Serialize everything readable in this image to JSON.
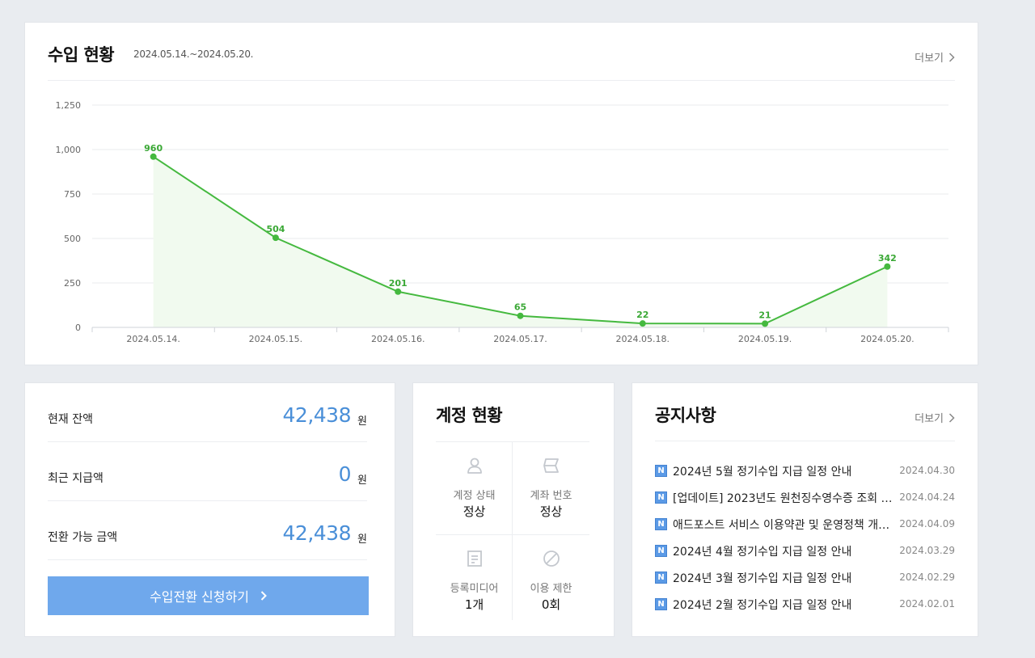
{
  "revenue": {
    "title": "수입 현황",
    "date_range": "2024.05.14.~2024.05.20.",
    "more_label": "더보기"
  },
  "chart_data": {
    "type": "area",
    "title": "수입 현황",
    "categories": [
      "2024.05.14.",
      "2024.05.15.",
      "2024.05.16.",
      "2024.05.17.",
      "2024.05.18.",
      "2024.05.19.",
      "2024.05.20."
    ],
    "values": [
      960,
      504,
      201,
      65,
      22,
      21,
      342
    ],
    "y_ticks": [
      0,
      250,
      500,
      750,
      1000,
      1250
    ],
    "y_tick_labels": [
      "0",
      "250",
      "500",
      "750",
      "1,000",
      "1,250"
    ],
    "ylim": [
      0,
      1250
    ],
    "xlabel": "",
    "ylabel": "",
    "grid": true,
    "line_color": "#45b93f",
    "fill_color": "#f1faef",
    "label_color": "#3aa835"
  },
  "balance": {
    "rows": [
      {
        "label": "현재 잔액",
        "value": "42,438",
        "unit": "원"
      },
      {
        "label": "최근 지급액",
        "value": "0",
        "unit": "원"
      },
      {
        "label": "전환 가능 금액",
        "value": "42,438",
        "unit": "원"
      }
    ],
    "apply_button": "수입전환 신청하기"
  },
  "account": {
    "title": "계정 현황",
    "cells": [
      {
        "label": "계정 상태",
        "value": "정상",
        "icon": "user-icon"
      },
      {
        "label": "계좌 번호",
        "value": "정상",
        "icon": "card-icon"
      },
      {
        "label": "등록미디어",
        "value": "1개",
        "icon": "document-icon"
      },
      {
        "label": "이용 제한",
        "value": "0회",
        "icon": "prohibited-icon"
      }
    ]
  },
  "notice": {
    "title": "공지사항",
    "more_label": "더보기",
    "badge": "N",
    "items": [
      {
        "title": "2024년 5월 정기수입 지급 일정 안내",
        "date": "2024.04.30"
      },
      {
        "title": "[업데이트] 2023년도 원천징수영수증 조회 …",
        "date": "2024.04.24"
      },
      {
        "title": "애드포스트 서비스 이용약관 및 운영정책 개…",
        "date": "2024.04.09"
      },
      {
        "title": "2024년 4월 정기수입 지급 일정 안내",
        "date": "2024.03.29"
      },
      {
        "title": "2024년 3월 정기수입 지급 일정 안내",
        "date": "2024.02.29"
      },
      {
        "title": "2024년 2월 정기수입 지급 일정 안내",
        "date": "2024.02.01"
      }
    ]
  },
  "colors": {
    "accent_blue": "#4a8fd8",
    "button_blue": "#6fa8ec",
    "badge_blue": "#5b9ae6"
  }
}
